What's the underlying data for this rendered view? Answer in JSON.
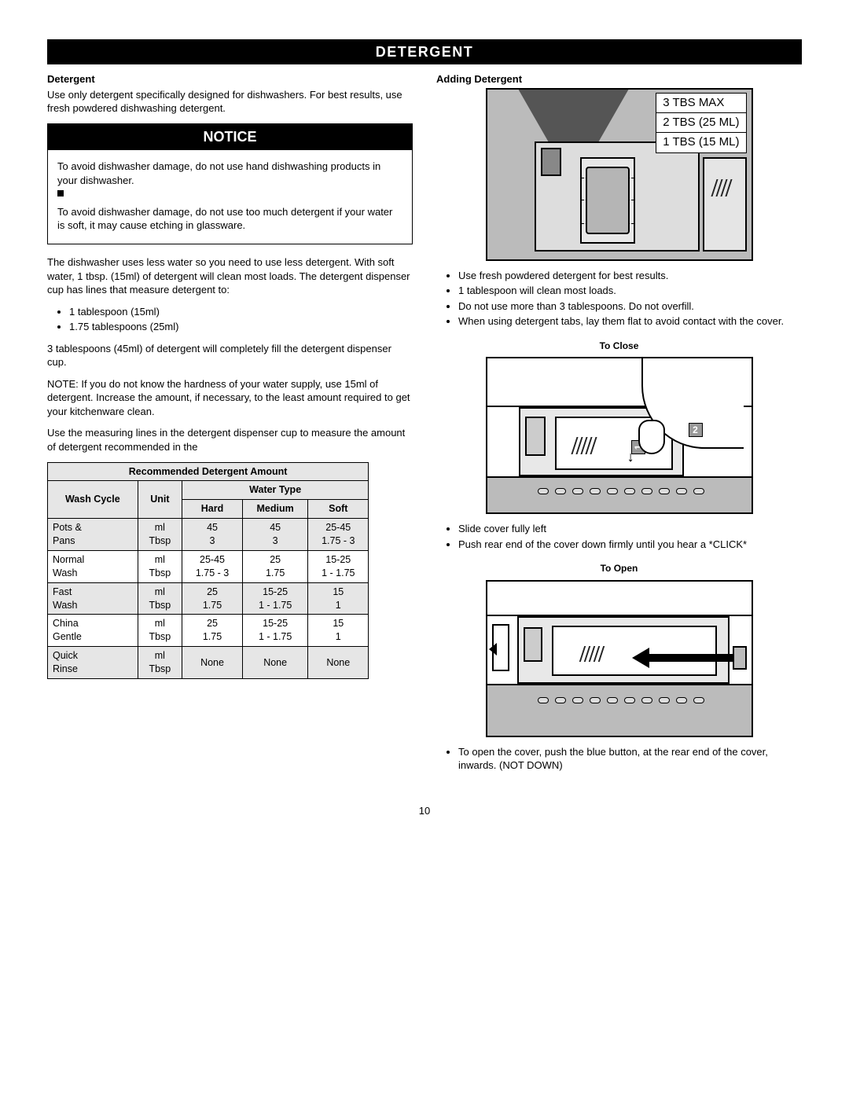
{
  "page_number": "10",
  "header_banner": "DETERGENT",
  "left": {
    "h_detergent": "Detergent",
    "p_intro_1": "Use only detergent specifically designed for dishwashers.",
    "p_intro_2": "For best results, use fresh powdered dishwashing detergent.",
    "notice_title": "NOTICE",
    "notice_1": "To avoid dishwasher damage, do not use hand dishwashing products in your dishwasher.",
    "notice_2": "To avoid dishwasher damage, do not use too much detergent if your water is soft, it may cause etching in glassware.",
    "p_less_water": "The dishwasher uses less water so you need to use less detergent. With soft water, 1 tbsp. (15ml) of detergent will clean most loads. The detergent dispenser cup has lines that measure detergent to:",
    "bul_1": "1 tablespoon (15ml)",
    "bul_2": "1.75 tablespoons (25ml)",
    "p_45ml": "3 tablespoons (45ml) of detergent will completely fill the detergent dispenser cup.",
    "p_note": "NOTE: If you do not know the hardness of your water supply, use 15ml of detergent. Increase the amount, if necessary, to the least amount required to get your kitchenware clean.",
    "p_measuring": "Use the measuring lines in the detergent dispenser cup to measure the amount of detergent recommended in the"
  },
  "table": {
    "title": "Recommended Detergent Amount",
    "water_type": "Water Type",
    "col_wash": "Wash Cycle",
    "col_unit": "Unit",
    "col_hard": "Hard",
    "col_medium": "Medium",
    "col_soft": "Soft",
    "rows": [
      {
        "cycle": "Pots & Pans",
        "u1": "ml",
        "u2": "Tbsp",
        "h1": "45",
        "h2": "3",
        "m1": "45",
        "m2": "3",
        "s1": "25-45",
        "s2": "1.75 - 3",
        "shade": true
      },
      {
        "cycle": "Normal Wash",
        "u1": "ml",
        "u2": "Tbsp",
        "h1": "25-45",
        "h2": "1.75 - 3",
        "m1": "25",
        "m2": "1.75",
        "s1": "15-25",
        "s2": "1 - 1.75",
        "shade": false
      },
      {
        "cycle": "Fast Wash",
        "u1": "ml",
        "u2": "Tbsp",
        "h1": "25",
        "h2": "1.75",
        "m1": "15-25",
        "m2": "1 - 1.75",
        "s1": "15",
        "s2": "1",
        "shade": true
      },
      {
        "cycle": "China Gentle",
        "u1": "ml",
        "u2": "Tbsp",
        "h1": "25",
        "h2": "1.75",
        "m1": "15-25",
        "m2": "1 - 1.75",
        "s1": "15",
        "s2": "1",
        "shade": false
      },
      {
        "cycle": "Quick Rinse",
        "u1": "ml",
        "u2": "Tbsp",
        "h1": "None",
        "h2": "",
        "m1": "None",
        "m2": "",
        "s1": "None",
        "s2": "",
        "shade": true
      }
    ]
  },
  "right": {
    "h_adding": "Adding Detergent",
    "add_label_1": "3 TBS MAX",
    "add_label_2": "2 TBS (25 ML)",
    "add_label_3": "1 TBS (15 ML)",
    "add_b1": "Use fresh powdered detergent for best results.",
    "add_b2": "1 tablespoon will clean most loads.",
    "add_b3": "Do not use more than 3 tablespoons. Do not overfill.",
    "add_b4": "When using detergent tabs, lay them flat to avoid contact with the cover.",
    "h_close": "To Close",
    "close_num1": "1",
    "close_num2": "2",
    "close_b1": "Slide cover fully left",
    "close_b2": "Push rear end of the cover down firmly until you hear a *CLICK*",
    "h_open": "To Open",
    "open_b1": "To open the cover, push the blue button, at the rear end of the cover, inwards. (NOT DOWN)"
  }
}
